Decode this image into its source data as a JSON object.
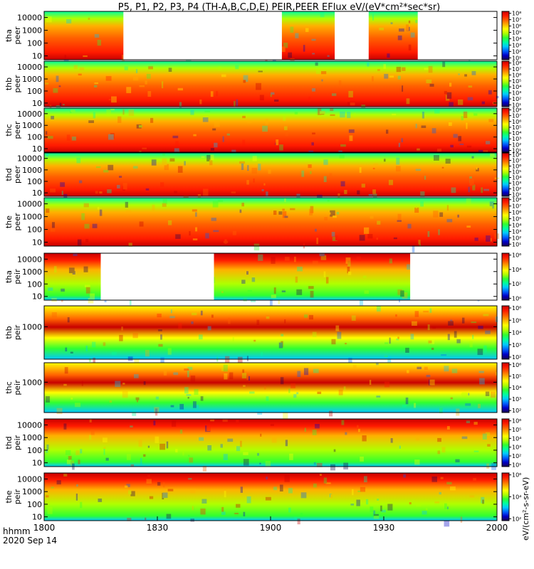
{
  "chart_data": {
    "type": "heatmap",
    "title": "P5, P1, P2, P3, P4 (TH-A,B,C,D,E) PEIR,PEER EFlux eV/(eV*cm²*sec*sr)",
    "x_tick_labels": [
      "1800",
      "1830",
      "1900",
      "1930",
      "2000"
    ],
    "x_ticks_hhmm": [
      1800,
      1830,
      1900,
      1930,
      2000
    ],
    "xlim_hhmm": [
      1800,
      2000
    ],
    "time_label": "hhmm",
    "date_label": "2020 Sep 14",
    "colormap": [
      "#1a0050",
      "#0000c8",
      "#0060ff",
      "#00c8ff",
      "#00ffa0",
      "#30ff30",
      "#b0ff00",
      "#ffff00",
      "#ffb000",
      "#ff6000",
      "#ff1a00",
      "#c80000"
    ],
    "units_label": "eV/(cm²-s-sr-eV)",
    "panels": [
      {
        "probe": "tha",
        "species": "peer",
        "ylim": [
          5,
          30000
        ],
        "y_ticks": [
          "10",
          "100",
          "1000",
          "10000"
        ],
        "colorbar_ticks": [
          "10¹",
          "10²",
          "10³",
          "10⁴",
          "10⁵",
          "10⁶",
          "10⁷",
          "10⁸"
        ],
        "gaps_hhmm": [
          [
            1821,
            1903
          ],
          [
            1917,
            1926
          ],
          [
            1939,
            2000
          ]
        ]
      },
      {
        "probe": "thb",
        "species": "peer",
        "ylim": [
          5,
          30000
        ],
        "y_ticks": [
          "10",
          "100",
          "1000",
          "10000"
        ],
        "colorbar_ticks": [
          "10¹",
          "10²",
          "10³",
          "10⁴",
          "10⁵",
          "10⁶",
          "10⁷",
          "10⁸"
        ],
        "gaps_hhmm": []
      },
      {
        "probe": "thc",
        "species": "peer",
        "ylim": [
          5,
          30000
        ],
        "y_ticks": [
          "10",
          "100",
          "1000",
          "10000"
        ],
        "colorbar_ticks": [
          "10¹",
          "10²",
          "10³",
          "10⁴",
          "10⁵",
          "10⁶",
          "10⁷",
          "10⁸"
        ],
        "gaps_hhmm": []
      },
      {
        "probe": "thd",
        "species": "peer",
        "ylim": [
          5,
          30000
        ],
        "y_ticks": [
          "10",
          "100",
          "1000",
          "10000"
        ],
        "colorbar_ticks": [
          "10¹",
          "10²",
          "10³",
          "10⁴",
          "10⁵",
          "10⁶",
          "10⁷",
          "10⁸"
        ],
        "gaps_hhmm": []
      },
      {
        "probe": "the",
        "species": "peer",
        "ylim": [
          5,
          30000
        ],
        "y_ticks": [
          "10",
          "100",
          "1000",
          "10000"
        ],
        "colorbar_ticks": [
          "10¹",
          "10²",
          "10³",
          "10⁴",
          "10⁵",
          "10⁶",
          "10⁷",
          "10⁸"
        ],
        "gaps_hhmm": []
      },
      {
        "probe": "tha",
        "species": "peir",
        "ylim": [
          5,
          30000
        ],
        "y_ticks": [
          "10",
          "100",
          "1000",
          "10000"
        ],
        "colorbar_ticks": [
          "10⁰",
          "10²",
          "10⁴",
          "10⁶"
        ],
        "gaps_hhmm": [
          [
            1815,
            1845
          ],
          [
            1937,
            2000
          ]
        ]
      },
      {
        "probe": "thb",
        "species": "peir",
        "ylim": [
          5,
          30000
        ],
        "y_ticks": [
          "1000"
        ],
        "colorbar_ticks": [
          "10²",
          "10³",
          "10⁴",
          "10⁵",
          "10⁶"
        ],
        "gaps_hhmm": []
      },
      {
        "probe": "thc",
        "species": "peir",
        "ylim": [
          5,
          30000
        ],
        "y_ticks": [
          "1000"
        ],
        "colorbar_ticks": [
          "10²",
          "10³",
          "10⁴",
          "10⁵",
          "10⁶"
        ],
        "gaps_hhmm": []
      },
      {
        "probe": "thd",
        "species": "peir",
        "ylim": [
          5,
          30000
        ],
        "y_ticks": [
          "10",
          "100",
          "1000",
          "10000"
        ],
        "colorbar_ticks": [
          "10¹",
          "10²",
          "10³",
          "10⁴",
          "10⁵",
          "10⁶"
        ],
        "gaps_hhmm": []
      },
      {
        "probe": "the",
        "species": "peir",
        "ylim": [
          5,
          30000
        ],
        "y_ticks": [
          "10",
          "100",
          "1000",
          "10000"
        ],
        "colorbar_ticks": [
          "10²",
          "10⁴",
          "10⁶"
        ],
        "gaps_hhmm": []
      }
    ]
  }
}
